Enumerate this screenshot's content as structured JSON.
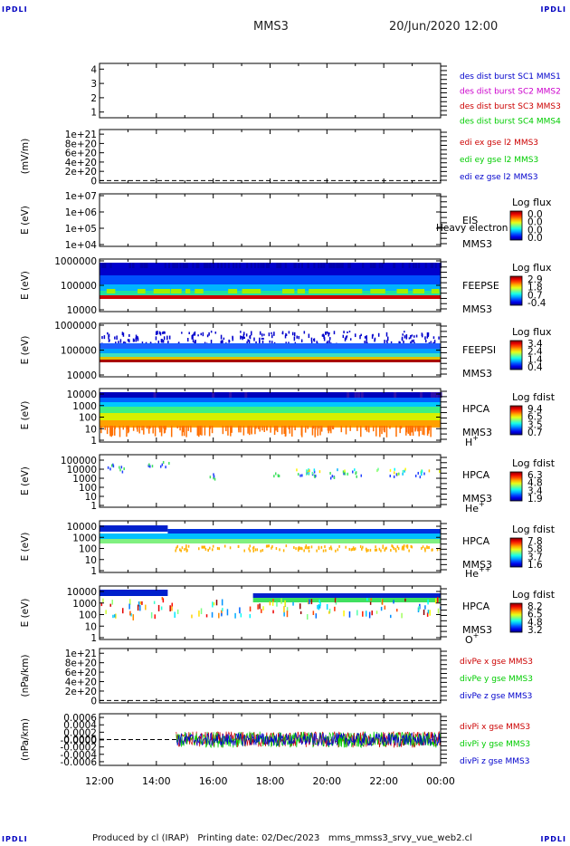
{
  "header": {
    "corner_tl": "IPDLI",
    "corner_tr": "IPDLI",
    "corner_bl": "IPDLI",
    "corner_br": "IPDLI",
    "spacecraft": "MMS3",
    "datetime": "20/Jun/2020 12:00"
  },
  "footer": {
    "text": "Produced by cl (IRAP)   Printing date: 02/Dec/2023   mms_mmss3_srvy_vue_web2.cl"
  },
  "colors": {
    "frame": "#000000",
    "saturated": "#c00000",
    "blue": "#0000cc",
    "green": "#00cc00",
    "magenta": "#cc00cc",
    "red": "#cc0000"
  },
  "chart_data": [
    {
      "type": "line",
      "id": "burst",
      "yticks": [
        "1",
        "2",
        "3",
        "4"
      ],
      "ylim": [
        0.6,
        4.4
      ],
      "legend": [
        {
          "text": "des dist burst SC1 MMS1",
          "color": "#0000cc"
        },
        {
          "text": "des dist burst SC2 MMS2",
          "color": "#cc00cc"
        },
        {
          "text": "des dist burst SC3 MMS3",
          "color": "#cc0000"
        },
        {
          "text": "des dist burst SC4 MMS4",
          "color": "#00cc00"
        }
      ]
    },
    {
      "type": "line",
      "id": "edi",
      "ylabel": "(mV/m)",
      "yticks": [
        "0",
        "2e+20",
        "4e+20",
        "6e+20",
        "8e+20",
        "1e+21"
      ],
      "ylim": [
        -5e+19,
        1.1e+21
      ],
      "legend": [
        {
          "text": "edi ex gse l2 MMS3",
          "color": "#cc0000"
        },
        {
          "text": "edi ey gse l2 MMS3",
          "color": "#00cc00"
        },
        {
          "text": "edi ez gse l2 MMS3",
          "color": "#0000cc"
        }
      ]
    },
    {
      "type": "heatmap",
      "id": "eis",
      "ylabel": "E (eV)",
      "yscale": "log",
      "yticks": [
        "1e+04",
        "1e+05",
        "1e+06",
        "1e+07"
      ],
      "instrument": "EIS",
      "spacecraft": "MMS3",
      "overlay_text": "Heavy electron to",
      "cb_title": "Log flux",
      "cb_ticks": [
        "0.0",
        "0.0",
        "0.0",
        "0.0"
      ],
      "fill": "none"
    },
    {
      "type": "heatmap",
      "id": "feeps_e",
      "ylabel": "E (eV)",
      "yscale": "log",
      "yticks": [
        "10000",
        "100000",
        "1000000"
      ],
      "instrument": "FEEPSE",
      "spacecraft": "MMS3",
      "cb_title": "Log flux",
      "cb_ticks": [
        "2.9",
        "1.8",
        "0.7",
        "-0.4"
      ],
      "fill": "feeps_e"
    },
    {
      "type": "heatmap",
      "id": "feeps_i",
      "ylabel": "E (eV)",
      "yscale": "log",
      "yticks": [
        "10000",
        "100000",
        "1000000"
      ],
      "instrument": "FEEPSI",
      "spacecraft": "MMS3",
      "cb_title": "Log flux",
      "cb_ticks": [
        "3.4",
        "2.4",
        "1.4",
        "0.4"
      ],
      "fill": "feeps_i"
    },
    {
      "type": "heatmap",
      "id": "hpca_h",
      "ylabel": "E (eV)",
      "yscale": "log",
      "yticks": [
        "1",
        "10",
        "100",
        "1000",
        "10000"
      ],
      "instrument": "HPCA",
      "spacecraft": "MMS3",
      "species": "H",
      "species_sup": "+",
      "cb_title": "Log fdist",
      "cb_ticks": [
        "9.4",
        "6.5",
        "3.5",
        "0.7"
      ],
      "fill": "hpca_h"
    },
    {
      "type": "heatmap",
      "id": "hpca_he1",
      "ylabel": "E (eV)",
      "yscale": "log",
      "yticks": [
        "1",
        "10",
        "100",
        "1000",
        "10000",
        "100000"
      ],
      "instrument": "HPCA",
      "spacecraft": "MMS3",
      "species": "He",
      "species_sup": "+",
      "cb_title": "Log fdist",
      "cb_ticks": [
        "6.3",
        "4.8",
        "3.4",
        "1.9"
      ],
      "fill": "hpca_he1"
    },
    {
      "type": "heatmap",
      "id": "hpca_he2",
      "ylabel": "E (eV)",
      "yscale": "log",
      "yticks": [
        "1",
        "10",
        "100",
        "1000",
        "10000"
      ],
      "instrument": "HPCA",
      "spacecraft": "MMS3",
      "species": "He",
      "species_sup": "++",
      "cb_title": "Log fdist",
      "cb_ticks": [
        "7.8",
        "5.8",
        "3.7",
        "1.6"
      ],
      "fill": "hpca_he2"
    },
    {
      "type": "heatmap",
      "id": "hpca_o",
      "ylabel": "E (eV)",
      "yscale": "log",
      "yticks": [
        "1",
        "10",
        "100",
        "1000",
        "10000"
      ],
      "instrument": "HPCA",
      "spacecraft": "MMS3",
      "species": "O",
      "species_sup": "+",
      "cb_title": "Log fdist",
      "cb_ticks": [
        "8.2",
        "6.5",
        "4.8",
        "3.2"
      ],
      "fill": "hpca_o"
    },
    {
      "type": "line",
      "id": "divpe",
      "ylabel": "(nPa/km)",
      "yticks": [
        "0",
        "2e+20",
        "4e+20",
        "6e+20",
        "8e+20",
        "1e+21"
      ],
      "ylim": [
        -5e+19,
        1.1e+21
      ],
      "legend": [
        {
          "text": "divPe x gse MMS3",
          "color": "#cc0000"
        },
        {
          "text": "divPe y gse MMS3",
          "color": "#00cc00"
        },
        {
          "text": "divPe z gse MMS3",
          "color": "#0000cc"
        }
      ]
    },
    {
      "type": "line",
      "id": "divpi",
      "ylabel": "(nPa/km)",
      "yticks": [
        "-0.0006",
        "-0.0004",
        "-0.0002",
        "-0.0000",
        "0.0000",
        "0.0002",
        "0.0004",
        "0.0006"
      ],
      "ylim": [
        -0.0007,
        0.0007
      ],
      "data_start": "14:42",
      "legend": [
        {
          "text": "divPi x gse MMS3",
          "color": "#cc0000"
        },
        {
          "text": "divPi y gse MMS3",
          "color": "#00cc00"
        },
        {
          "text": "divPi z gse MMS3",
          "color": "#0000cc"
        }
      ]
    }
  ],
  "time_axis": {
    "ticks": [
      "12:00",
      "14:00",
      "16:00",
      "18:00",
      "20:00",
      "22:00",
      "00:00"
    ]
  }
}
